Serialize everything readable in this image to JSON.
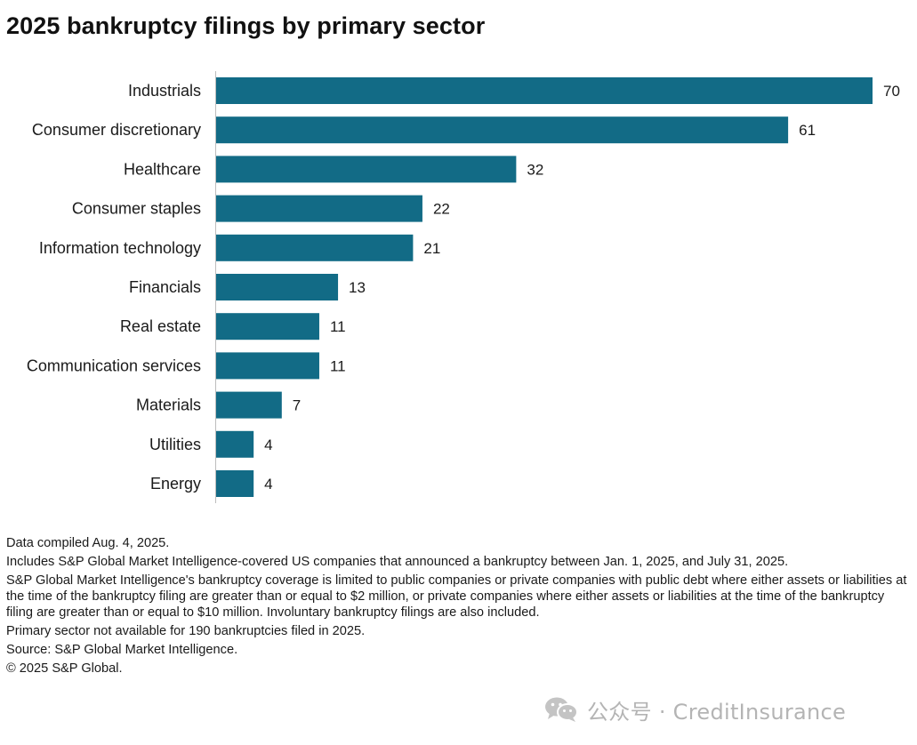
{
  "title": "2025 bankruptcy filings by primary sector",
  "chart_data": {
    "type": "bar",
    "orientation": "horizontal",
    "categories": [
      "Industrials",
      "Consumer discretionary",
      "Healthcare",
      "Consumer staples",
      "Information technology",
      "Financials",
      "Real estate",
      "Communication services",
      "Materials",
      "Utilities",
      "Energy"
    ],
    "values": [
      70,
      61,
      32,
      22,
      21,
      13,
      11,
      11,
      7,
      4,
      4
    ],
    "xlim": [
      0,
      70
    ],
    "data_labels": true,
    "grid": false,
    "bar_color": "#126b86"
  },
  "notes": [
    "Data compiled Aug. 4, 2025.",
    "Includes S&P Global Market Intelligence-covered US companies that announced a bankruptcy between Jan. 1, 2025, and July 31, 2025.",
    "S&P Global Market Intelligence's bankruptcy coverage is limited to public companies or private companies with public debt where either assets or liabilities at the time of the bankruptcy filing are greater than or equal to $2 million, or private companies where either assets or liabilities at the time of the bankruptcy filing are greater than or equal to $10 million. Involuntary bankruptcy filings are also included.",
    "Primary sector not available for 190 bankruptcies filed in 2025.",
    "Source: S&P Global Market Intelligence.",
    "© 2025 S&P Global."
  ],
  "watermark": {
    "text": "公众号 · CreditInsurance",
    "icon": "wechat-icon"
  }
}
